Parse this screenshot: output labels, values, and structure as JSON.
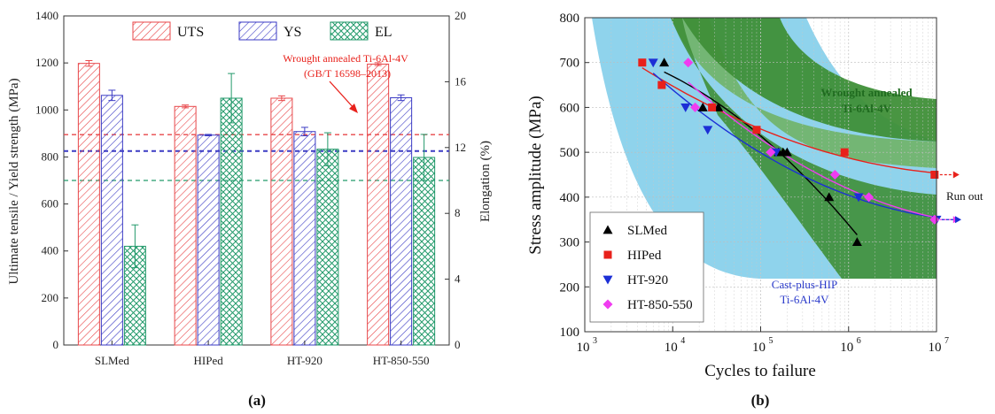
{
  "figure": {
    "panel_a_label": "(a)",
    "panel_b_label": "(b)"
  },
  "colors": {
    "uts": "#e8474a",
    "ys": "#3b3bc4",
    "el": "#239a6b",
    "slmed": "#000000",
    "hiped": "#e8211b",
    "ht920": "#1c2fd6",
    "ht850": "#f03cf0",
    "cast_band": "#8fd3ec",
    "wrought_band_dark": "#3f8f38",
    "wrought_band_light": "#6fb05f"
  },
  "chart_data": [
    {
      "type": "bar",
      "title": "",
      "xlabel": "",
      "ylabel": "Ultimate tensile / Yield strength (MPa)",
      "ylabel_right": "Elongation (%)",
      "ylim": [
        0,
        1400
      ],
      "ylim_right": [
        0,
        20
      ],
      "yticks": [
        "0",
        "200",
        "400",
        "600",
        "800",
        "1000",
        "1200",
        "1400"
      ],
      "yticks_right": [
        "0",
        "4",
        "8",
        "12",
        "16",
        "20"
      ],
      "categories": [
        "SLMed",
        "HIPed",
        "HT-920",
        "HT-850-550"
      ],
      "legend_position": "top",
      "series": [
        {
          "name": "UTS",
          "axis": "left",
          "values": [
            1198,
            1015,
            1050,
            1195
          ],
          "errors": [
            12,
            6,
            10,
            6
          ]
        },
        {
          "name": "YS",
          "axis": "left",
          "values": [
            1062,
            893,
            908,
            1052
          ],
          "errors": [
            22,
            3,
            18,
            12
          ]
        },
        {
          "name": "EL",
          "axis": "right",
          "values": [
            6.0,
            15.0,
            11.9,
            11.4
          ],
          "errors": [
            1.3,
            1.5,
            1.0,
            1.4
          ]
        }
      ],
      "reference_lines": [
        {
          "series": "UTS",
          "value": 895
        },
        {
          "series": "YS",
          "value": 825
        },
        {
          "series": "EL",
          "axis": "right",
          "value": 10
        }
      ],
      "annotation": {
        "line1": "Wrought annealed Ti-6Al-4V",
        "line2": "(GB/T 16598–2013)"
      },
      "grid": false
    },
    {
      "type": "scatter",
      "title": "",
      "xlabel": "Cycles to failure",
      "ylabel": "Stress amplitude (MPa)",
      "x_scale": "log",
      "xlim": [
        1000,
        10000000
      ],
      "ylim": [
        100,
        800
      ],
      "xticks": [
        "10",
        "10",
        "10",
        "10",
        "10"
      ],
      "xtick_exponents": [
        "3",
        "4",
        "5",
        "6",
        "7"
      ],
      "yticks": [
        "100",
        "200",
        "300",
        "400",
        "500",
        "600",
        "700",
        "800"
      ],
      "grid": true,
      "legend_position": "bottom-left",
      "series": [
        {
          "name": "SLMed",
          "marker": "triangle-up",
          "x": [
            8000,
            22000,
            33000,
            160000,
            180000,
            200000,
            600000,
            1250000
          ],
          "y": [
            700,
            600,
            600,
            500,
            500,
            500,
            400,
            300
          ]
        },
        {
          "name": "HIPed",
          "marker": "square",
          "x": [
            4500,
            7500,
            28000,
            90000,
            900000,
            9500000
          ],
          "y": [
            700,
            650,
            600,
            550,
            500,
            450
          ]
        },
        {
          "name": "HT-920",
          "marker": "triangle-down",
          "x": [
            6000,
            14000,
            25000,
            150000,
            1300000,
            10000000
          ],
          "y": [
            700,
            600,
            550,
            500,
            400,
            350
          ]
        },
        {
          "name": "HT-850-550",
          "marker": "diamond",
          "x": [
            15000,
            18000,
            130000,
            700000,
            1700000,
            9500000
          ],
          "y": [
            700,
            600,
            500,
            450,
            400,
            350
          ]
        }
      ],
      "annotations": {
        "wrought_line1": "Wrought annealed",
        "wrought_line2": "Ti-6Al-4V",
        "cast_line1": "Cast-plus-HIP",
        "cast_line2": "Ti-6Al-4V",
        "runout": "Run out"
      }
    }
  ]
}
